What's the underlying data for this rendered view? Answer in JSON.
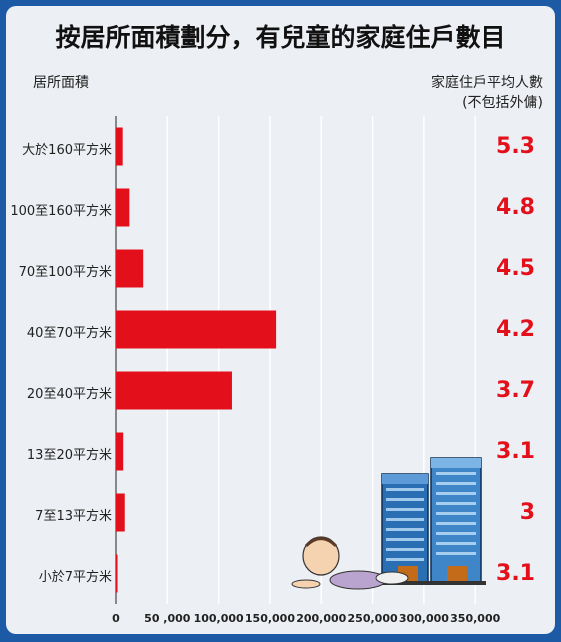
{
  "title": "按居所面積劃分，有兒童的家庭住戶數目",
  "left_header": "居所面積",
  "right_header_line1": "家庭住戶平均人數",
  "right_header_line2": "(不包括外傭)",
  "colors": {
    "bar": "#e3101c",
    "frame": "#1d5aa6",
    "background": "#eceff3",
    "grid": "#ffffff"
  },
  "chart_data": {
    "type": "bar",
    "orientation": "horizontal",
    "title": "按居所面積劃分，有兒童的家庭住戶數目",
    "xlabel": "",
    "ylabel": "居所面積",
    "xlim": [
      0,
      380000
    ],
    "x_ticks": [
      0,
      50000,
      100000,
      150000,
      200000,
      250000,
      300000,
      350000
    ],
    "x_tick_labels": [
      "0",
      "50 ,000",
      "100,000",
      "150,000",
      "200,000",
      "250,000",
      "300,000",
      "350,000"
    ],
    "categories": [
      "大於160平方米",
      "100至160平方米",
      "70至100平方米",
      "40至70平方米",
      "20至40平方米",
      "13至20平方米",
      "7至13平方米",
      "小於7平方米"
    ],
    "values": [
      6500,
      13000,
      26500,
      156000,
      113000,
      7000,
      8500,
      1500
    ],
    "avg_household_size_header": "家庭住戶平均人數 (不包括外傭)",
    "avg_household_size": [
      "5.3",
      "4.8",
      "4.5",
      "4.2",
      "3.7",
      "3.1",
      "3",
      "3.1"
    ],
    "grid": true
  }
}
